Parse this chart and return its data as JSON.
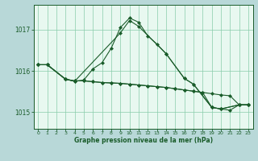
{
  "background_color": "#b8d8d8",
  "plot_bg_color": "#e8f8f0",
  "grid_color": "#88ccaa",
  "line_color": "#1a5c2a",
  "xlabel": "Graphe pression niveau de la mer (hPa)",
  "ylim": [
    1014.6,
    1017.6
  ],
  "xlim": [
    -0.5,
    23.5
  ],
  "yticks": [
    1015,
    1016,
    1017
  ],
  "xticks": [
    0,
    1,
    2,
    3,
    4,
    5,
    6,
    7,
    8,
    9,
    10,
    11,
    12,
    13,
    14,
    15,
    16,
    17,
    18,
    19,
    20,
    21,
    22,
    23
  ],
  "line1_x": [
    0,
    1,
    3,
    4,
    5,
    6,
    7,
    8,
    9,
    10,
    11,
    12,
    13,
    14,
    16,
    17,
    19,
    20,
    22,
    23
  ],
  "line1_y": [
    1016.15,
    1016.15,
    1015.8,
    1015.75,
    1015.78,
    1016.05,
    1016.2,
    1016.55,
    1017.05,
    1017.28,
    1017.18,
    1016.85,
    1016.65,
    1016.42,
    1015.82,
    1015.68,
    1015.12,
    1015.08,
    1015.18,
    1015.18
  ],
  "line2_x": [
    0,
    1,
    3,
    4,
    9,
    10,
    11,
    14,
    16,
    17,
    19,
    20,
    22,
    23
  ],
  "line2_y": [
    1016.15,
    1016.15,
    1015.8,
    1015.75,
    1016.92,
    1017.22,
    1017.08,
    1016.42,
    1015.82,
    1015.68,
    1015.12,
    1015.08,
    1015.18,
    1015.18
  ],
  "line3_x": [
    0,
    1,
    3,
    4,
    5,
    6,
    7,
    8,
    9,
    10,
    11,
    12,
    13,
    14,
    15,
    16,
    17,
    18,
    19,
    20,
    21,
    22,
    23
  ],
  "line3_y": [
    1016.15,
    1016.15,
    1015.8,
    1015.76,
    1015.76,
    1015.74,
    1015.72,
    1015.71,
    1015.7,
    1015.68,
    1015.66,
    1015.64,
    1015.62,
    1015.6,
    1015.57,
    1015.54,
    1015.51,
    1015.48,
    1015.45,
    1015.42,
    1015.4,
    1015.18,
    1015.18
  ],
  "line4_x": [
    0,
    1,
    3,
    4,
    5,
    6,
    7,
    8,
    9,
    10,
    11,
    12,
    13,
    14,
    15,
    16,
    17,
    18,
    19,
    20,
    21,
    22,
    23
  ],
  "line4_y": [
    1016.15,
    1016.15,
    1015.8,
    1015.76,
    1015.76,
    1015.74,
    1015.72,
    1015.71,
    1015.7,
    1015.68,
    1015.66,
    1015.64,
    1015.62,
    1015.6,
    1015.57,
    1015.54,
    1015.51,
    1015.48,
    1015.12,
    1015.08,
    1015.05,
    1015.18,
    1015.18
  ]
}
